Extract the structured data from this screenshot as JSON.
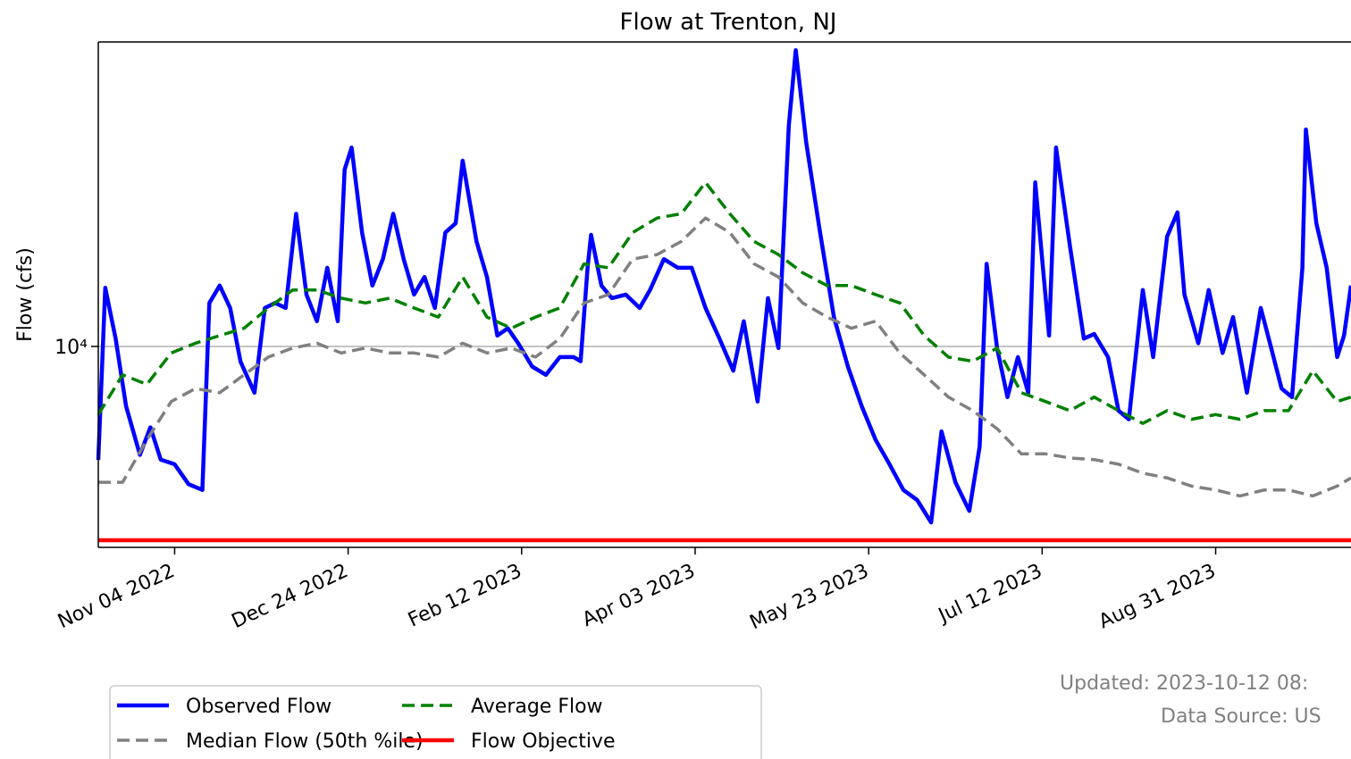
{
  "chart_data": {
    "type": "line",
    "title": "Flow at Trenton, NJ",
    "ylabel": "Flow (cfs)",
    "log_y": true,
    "grid": true,
    "legend": "lower left",
    "xlim": [
      "2022-10-13",
      "2023-10-09"
    ],
    "xticks": [
      {
        "value": "2022-11-04",
        "label": "Nov 04 2022"
      },
      {
        "value": "2022-12-24",
        "label": "Dec 24 2022"
      },
      {
        "value": "2023-02-12",
        "label": "Feb 12 2023"
      },
      {
        "value": "2023-04-03",
        "label": "Apr 03 2023"
      },
      {
        "value": "2023-05-23",
        "label": "May 23 2023"
      },
      {
        "value": "2023-07-12",
        "label": "Jul 12 2023"
      },
      {
        "value": "2023-08-31",
        "label": "Aug 31 2023"
      }
    ],
    "ylim": [
      2870,
      66300
    ],
    "yticks": [
      {
        "value": 10000,
        "label": "10⁴"
      }
    ],
    "updated": "Updated: 2023-10-12 08:",
    "source": "Data Source: US",
    "series": [
      {
        "name": "Observed Flow",
        "color": "#0000ff",
        "linestyle": "solid",
        "x": [
          "2022-10-13",
          "2022-10-15",
          "2022-10-18",
          "2022-10-21",
          "2022-10-25",
          "2022-10-28",
          "2022-10-31",
          "2022-11-04",
          "2022-11-08",
          "2022-11-12",
          "2022-11-14",
          "2022-11-17",
          "2022-11-20",
          "2022-11-23",
          "2022-11-27",
          "2022-11-30",
          "2022-12-03",
          "2022-12-06",
          "2022-12-09",
          "2022-12-12",
          "2022-12-15",
          "2022-12-18",
          "2022-12-21",
          "2022-12-23",
          "2022-12-25",
          "2022-12-28",
          "2022-12-31",
          "2023-01-03",
          "2023-01-06",
          "2023-01-09",
          "2023-01-12",
          "2023-01-15",
          "2023-01-18",
          "2023-01-21",
          "2023-01-24",
          "2023-01-26",
          "2023-01-30",
          "2023-02-02",
          "2023-02-05",
          "2023-02-08",
          "2023-02-11",
          "2023-02-15",
          "2023-02-19",
          "2023-02-23",
          "2023-02-27",
          "2023-03-01",
          "2023-03-03",
          "2023-03-04",
          "2023-03-07",
          "2023-03-10",
          "2023-03-14",
          "2023-03-18",
          "2023-03-21",
          "2023-03-25",
          "2023-03-29",
          "2023-04-02",
          "2023-04-06",
          "2023-04-10",
          "2023-04-14",
          "2023-04-17",
          "2023-04-21",
          "2023-04-24",
          "2023-04-27",
          "2023-04-30",
          "2023-05-02",
          "2023-05-05",
          "2023-05-09",
          "2023-05-13",
          "2023-05-17",
          "2023-05-21",
          "2023-05-25",
          "2023-05-29",
          "2023-06-02",
          "2023-06-06",
          "2023-06-10",
          "2023-06-13",
          "2023-06-17",
          "2023-06-21",
          "2023-06-24",
          "2023-06-26",
          "2023-06-29",
          "2023-07-02",
          "2023-07-05",
          "2023-07-08",
          "2023-07-10",
          "2023-07-14",
          "2023-07-16",
          "2023-07-20",
          "2023-07-24",
          "2023-07-27",
          "2023-07-31",
          "2023-08-03",
          "2023-08-06",
          "2023-08-10",
          "2023-08-13",
          "2023-08-17",
          "2023-08-20",
          "2023-08-22",
          "2023-08-26",
          "2023-08-29",
          "2023-09-02",
          "2023-09-05",
          "2023-09-09",
          "2023-09-13",
          "2023-09-16",
          "2023-09-19",
          "2023-09-22",
          "2023-09-25",
          "2023-09-26",
          "2023-09-29",
          "2023-10-02",
          "2023-10-05",
          "2023-10-07",
          "2023-10-09"
        ],
        "values": [
          4940,
          14400,
          10500,
          6900,
          5100,
          6050,
          4950,
          4810,
          4250,
          4100,
          13100,
          14600,
          12700,
          9100,
          7500,
          12700,
          13100,
          12700,
          22800,
          13800,
          11700,
          16300,
          11700,
          30000,
          34400,
          20300,
          14600,
          17200,
          22800,
          17200,
          13800,
          15400,
          12700,
          20300,
          21500,
          31700,
          19200,
          15400,
          10700,
          11200,
          10200,
          8830,
          8380,
          9360,
          9360,
          9120,
          16300,
          20000,
          14600,
          13500,
          13800,
          12700,
          14200,
          17200,
          16300,
          16300,
          12700,
          10500,
          8600,
          11700,
          7100,
          13500,
          9900,
          39400,
          63000,
          35500,
          20300,
          12000,
          8830,
          6900,
          5600,
          4810,
          4100,
          3850,
          3350,
          5900,
          4300,
          3600,
          5370,
          16700,
          9900,
          7300,
          9360,
          7500,
          27700,
          10700,
          34400,
          18700,
          10500,
          10800,
          9360,
          6710,
          6360,
          14200,
          9360,
          19800,
          23000,
          13800,
          10200,
          14200,
          9600,
          12000,
          7500,
          12700,
          9900,
          7700,
          7300,
          16300,
          38500,
          21500,
          16300,
          9360,
          10700,
          14600
        ]
      },
      {
        "name": "Median Flow (50th %ile)",
        "color": "#808080",
        "linestyle": "dashed",
        "x": [
          "2022-10-13",
          "2022-10-20",
          "2022-10-27",
          "2022-11-03",
          "2022-11-10",
          "2022-11-17",
          "2022-11-24",
          "2022-12-01",
          "2022-12-08",
          "2022-12-15",
          "2022-12-22",
          "2022-12-29",
          "2023-01-05",
          "2023-01-12",
          "2023-01-19",
          "2023-01-26",
          "2023-02-02",
          "2023-02-09",
          "2023-02-16",
          "2023-02-23",
          "2023-03-02",
          "2023-03-09",
          "2023-03-16",
          "2023-03-23",
          "2023-03-30",
          "2023-04-06",
          "2023-04-13",
          "2023-04-20",
          "2023-04-27",
          "2023-05-04",
          "2023-05-11",
          "2023-05-18",
          "2023-05-25",
          "2023-06-01",
          "2023-06-08",
          "2023-06-15",
          "2023-06-22",
          "2023-06-29",
          "2023-07-06",
          "2023-07-13",
          "2023-07-20",
          "2023-07-27",
          "2023-08-03",
          "2023-08-10",
          "2023-08-17",
          "2023-08-24",
          "2023-08-31",
          "2023-09-07",
          "2023-09-14",
          "2023-09-21",
          "2023-09-28",
          "2023-10-05",
          "2023-10-09"
        ],
        "values": [
          4300,
          4300,
          5600,
          7100,
          7700,
          7500,
          8380,
          9360,
          9900,
          10200,
          9600,
          9900,
          9600,
          9600,
          9360,
          10200,
          9600,
          9900,
          9360,
          10500,
          13100,
          13800,
          17200,
          17700,
          19200,
          22200,
          20300,
          16700,
          15400,
          13100,
          12000,
          11200,
          11700,
          9600,
          8380,
          7300,
          6710,
          6000,
          5130,
          5130,
          5000,
          4950,
          4810,
          4550,
          4420,
          4200,
          4100,
          3950,
          4100,
          4100,
          3950,
          4200,
          4420
        ]
      },
      {
        "name": "Average Flow",
        "color": "#008000",
        "linestyle": "dashed",
        "x": [
          "2022-10-13",
          "2022-10-20",
          "2022-10-27",
          "2022-11-03",
          "2022-11-10",
          "2022-11-17",
          "2022-11-24",
          "2022-12-01",
          "2022-12-08",
          "2022-12-15",
          "2022-12-22",
          "2022-12-29",
          "2023-01-05",
          "2023-01-12",
          "2023-01-19",
          "2023-01-26",
          "2023-02-02",
          "2023-02-09",
          "2023-02-16",
          "2023-02-23",
          "2023-03-02",
          "2023-03-09",
          "2023-03-16",
          "2023-03-23",
          "2023-03-30",
          "2023-04-06",
          "2023-04-13",
          "2023-04-20",
          "2023-04-27",
          "2023-05-04",
          "2023-05-11",
          "2023-05-18",
          "2023-05-25",
          "2023-06-01",
          "2023-06-08",
          "2023-06-15",
          "2023-06-22",
          "2023-06-29",
          "2023-07-06",
          "2023-07-13",
          "2023-07-20",
          "2023-07-27",
          "2023-08-03",
          "2023-08-10",
          "2023-08-17",
          "2023-08-24",
          "2023-08-31",
          "2023-09-07",
          "2023-09-14",
          "2023-09-21",
          "2023-09-28",
          "2023-10-05",
          "2023-10-09"
        ],
        "values": [
          6550,
          8380,
          7900,
          9600,
          10200,
          10700,
          11200,
          12700,
          14200,
          14200,
          13500,
          13100,
          13500,
          12700,
          12000,
          15400,
          12000,
          11200,
          12000,
          12700,
          16700,
          16300,
          20300,
          22200,
          22800,
          27700,
          22800,
          19200,
          17700,
          15800,
          14600,
          14600,
          13800,
          13100,
          10700,
          9360,
          9120,
          9900,
          7500,
          7100,
          6710,
          7300,
          6710,
          6200,
          6710,
          6360,
          6550,
          6360,
          6710,
          6710,
          8600,
          7100,
          7300
        ]
      },
      {
        "name": "Flow Objective",
        "color": "#ff0000",
        "linestyle": "solid",
        "x": [
          "2022-10-13",
          "2023-10-09"
        ],
        "values": [
          3000,
          3000
        ]
      }
    ]
  }
}
